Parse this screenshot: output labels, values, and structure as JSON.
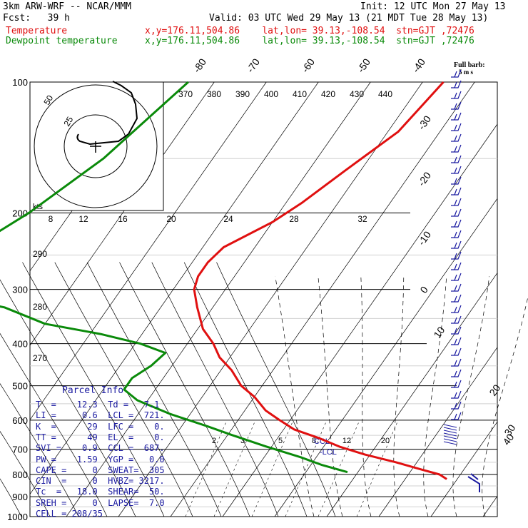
{
  "header": {
    "line1_left": "3km ARW-WRF -- NCAR/MMM",
    "line1_right": "Init: 12 UTC Mon 27 May 13",
    "line2_left": "Fcst:   39 h",
    "line2_right": "Valid: 03 UTC Wed 29 May 13 (21 MDT Tue 28 May 13)",
    "line3_label": "Temperature",
    "line3_info": "x,y=176.11,504.86    lat,lon= 39.13,-108.54  stn=GJT ,72476",
    "line4_label": "Dewpoint temperature",
    "line4_info": "x,y=176.11,504.86    lat,lon= 39.13,-108.54  stn=GJT ,72476"
  },
  "chart_data": {
    "type": "line",
    "title": "",
    "ylabel": "",
    "pressure_ticks": [
      100,
      200,
      300,
      400,
      500,
      600,
      700,
      800,
      900,
      1000
    ],
    "isotherm_labels": [
      "-80",
      "-70",
      "-60",
      "-50",
      "-40",
      "-30",
      "-20",
      "-10",
      "0",
      "10",
      "20",
      "30",
      "40"
    ],
    "theta_labels": [
      "370",
      "380",
      "390",
      "400",
      "410",
      "420",
      "430",
      "440"
    ],
    "theta_labels_left": [
      "290",
      "280",
      "270"
    ],
    "mixing_ratio_labels": [
      "2",
      "3",
      "5",
      "8",
      "12",
      "20"
    ],
    "series": [
      {
        "name": "Temperature",
        "color": "#e01010",
        "points": [
          [
            100,
            -56
          ],
          [
            130,
            -58
          ],
          [
            160,
            -63
          ],
          [
            190,
            -67
          ],
          [
            210,
            -70
          ],
          [
            240,
            -76
          ],
          [
            260,
            -77
          ],
          [
            280,
            -77
          ],
          [
            300,
            -76
          ],
          [
            330,
            -73
          ],
          [
            370,
            -69
          ],
          [
            400,
            -65
          ],
          [
            430,
            -62
          ],
          [
            460,
            -58
          ],
          [
            500,
            -54
          ],
          [
            530,
            -50
          ],
          [
            570,
            -46
          ],
          [
            600,
            -42
          ],
          [
            630,
            -38
          ],
          [
            660,
            -32
          ],
          [
            690,
            -27
          ],
          [
            720,
            -21
          ],
          [
            750,
            -14
          ],
          [
            780,
            -8
          ],
          [
            800,
            -4
          ],
          [
            820,
            -2
          ]
        ]
      },
      {
        "name": "Dewpoint temperature",
        "color": "#0a8a0a",
        "points": [
          [
            100,
            -105
          ],
          [
            150,
            -111
          ],
          [
            200,
            -118
          ],
          [
            240,
            -124
          ],
          [
            260,
            -131
          ],
          [
            290,
            -141
          ],
          [
            310,
            -123
          ],
          [
            330,
            -110
          ],
          [
            360,
            -100
          ],
          [
            380,
            -88
          ],
          [
            400,
            -79
          ],
          [
            420,
            -73
          ],
          [
            450,
            -74
          ],
          [
            480,
            -76
          ],
          [
            510,
            -76
          ],
          [
            540,
            -72
          ],
          [
            580,
            -64
          ],
          [
            620,
            -55
          ],
          [
            650,
            -49
          ],
          [
            690,
            -41
          ],
          [
            730,
            -33
          ],
          [
            760,
            -28
          ],
          [
            790,
            -22
          ]
        ]
      }
    ]
  },
  "hodograph": {
    "units_label": "kts",
    "ring_labels": [
      "50",
      "25"
    ],
    "speed_ticks": [
      "8",
      "12",
      "16",
      "20",
      "24",
      "28",
      "32"
    ]
  },
  "parcel_info": {
    "title": "Parcel Info",
    "rows": [
      "T  =    12.3  Td =   7.1",
      "LI =     0.6  LCL =  721.",
      "K  =      29  LFC =    0.",
      "TT =      49  EL  =    0.",
      "SVI =    0.9  CCL =  687.",
      "PW =    1.59  YGP =   0.0",
      "CAPE =     0  SWEAT=  305",
      "CIN  =     0  HVBZ= 3217.",
      "Tc  =   18.0  SHEAR=  50.",
      "SREH =     0  LAPSE=  7.0",
      "CELL = 208/35"
    ]
  },
  "annotations": {
    "ccl": "CCL",
    "lcl": "-LCL",
    "full_barb": "Full barb:",
    "full_barb_units": "5 m s"
  },
  "colors": {
    "temperature": "#e01010",
    "dewpoint": "#0a8a0a",
    "info_text": "#1a1aa0",
    "wind_barbs": "#1a1aa0"
  }
}
